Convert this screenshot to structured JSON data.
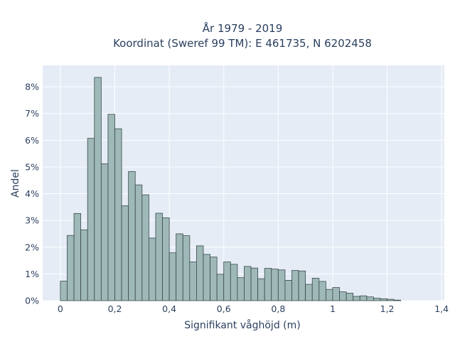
{
  "chart_data": {
    "type": "bar",
    "title": [
      "År 1979 - 2019",
      "Koordinat (Sweref 99 TM): E 461735, N 6202458"
    ],
    "xlabel": "Signifikant våghöjd (m)",
    "ylabel": "Andel",
    "xlim": [
      -0.065,
      1.41
    ],
    "ylim": [
      0,
      8.8
    ],
    "x_ticks": [
      0,
      0.2,
      0.4,
      0.6,
      0.8,
      1,
      1.2,
      1.4
    ],
    "x_tick_labels": [
      "0",
      "0,2",
      "0,4",
      "0,6",
      "0,8",
      "1",
      "1,2",
      "1,4"
    ],
    "y_ticks": [
      0,
      1,
      2,
      3,
      4,
      5,
      6,
      7,
      8
    ],
    "y_tick_labels": [
      "0%",
      "1%",
      "2%",
      "3%",
      "4%",
      "5%",
      "6%",
      "7%",
      "8%"
    ],
    "grid": true,
    "bin_width": 0.025,
    "bin_starts": [
      0,
      0.025,
      0.05,
      0.075,
      0.1,
      0.125,
      0.15,
      0.175,
      0.2,
      0.225,
      0.25,
      0.275,
      0.3,
      0.325,
      0.35,
      0.375,
      0.4,
      0.425,
      0.45,
      0.475,
      0.5,
      0.525,
      0.55,
      0.575,
      0.6,
      0.625,
      0.65,
      0.675,
      0.7,
      0.725,
      0.75,
      0.775,
      0.8,
      0.825,
      0.85,
      0.875,
      0.9,
      0.925,
      0.95,
      0.975,
      1.0,
      1.025,
      1.05,
      1.075,
      1.1,
      1.125,
      1.15,
      1.175,
      1.2,
      1.225,
      1.25,
      1.275,
      1.3,
      1.325
    ],
    "values": [
      0.73,
      2.44,
      3.26,
      2.65,
      6.07,
      8.35,
      5.12,
      6.97,
      6.43,
      3.55,
      4.83,
      4.33,
      3.96,
      2.34,
      3.27,
      3.1,
      1.79,
      2.5,
      2.43,
      1.45,
      2.05,
      1.73,
      1.63,
      0.99,
      1.45,
      1.36,
      0.86,
      1.28,
      1.22,
      0.82,
      1.21,
      1.18,
      1.15,
      0.76,
      1.13,
      1.11,
      0.61,
      0.84,
      0.72,
      0.42,
      0.49,
      0.33,
      0.28,
      0.16,
      0.18,
      0.14,
      0.09,
      0.07,
      0.05,
      0.02,
      0,
      0,
      0,
      0
    ]
  }
}
